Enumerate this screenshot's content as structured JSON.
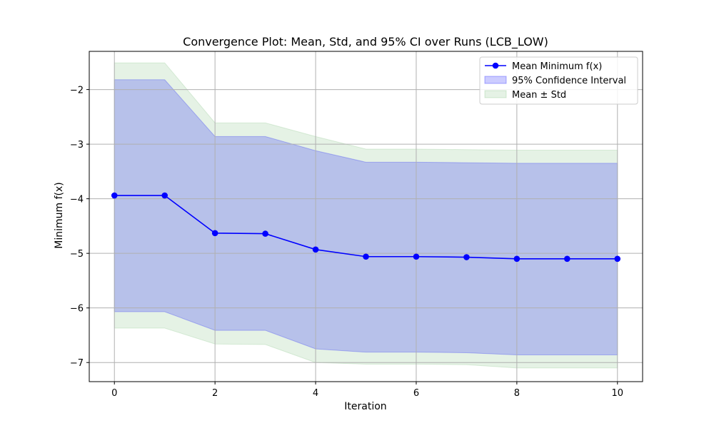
{
  "chart_data": {
    "type": "line",
    "title": "Convergence Plot: Mean, Std, and 95% CI over Runs (LCB_LOW)",
    "xlabel": "Iteration",
    "ylabel": "Minimum f(x)",
    "xlim": [
      -0.5,
      10.5
    ],
    "ylim": [
      -7.35,
      -1.3
    ],
    "x_ticks": [
      0,
      2,
      4,
      6,
      8,
      10
    ],
    "x_tick_labels": [
      "0",
      "2",
      "4",
      "6",
      "8",
      "10"
    ],
    "y_ticks": [
      -7,
      -6,
      -5,
      -4,
      -3,
      -2
    ],
    "y_tick_labels": [
      "−7",
      "−6",
      "−5",
      "−4",
      "−3",
      "−2"
    ],
    "grid": true,
    "legend_position": "top-right",
    "x": [
      0,
      1,
      2,
      3,
      4,
      5,
      6,
      7,
      8,
      9,
      10
    ],
    "series": [
      {
        "name": "Mean Minimum f(x)",
        "kind": "line",
        "color": "#0000ff",
        "marker": "circle",
        "values": [
          -3.94,
          -3.94,
          -4.63,
          -4.64,
          -4.93,
          -5.06,
          -5.06,
          -5.07,
          -5.1,
          -5.1,
          -5.1
        ]
      },
      {
        "name": "95% Confidence Interval",
        "kind": "band",
        "color": "#0000ff",
        "opacity": 0.2,
        "upper": [
          -1.82,
          -1.82,
          -2.86,
          -2.86,
          -3.12,
          -3.33,
          -3.33,
          -3.34,
          -3.35,
          -3.35,
          -3.35
        ],
        "lower": [
          -6.07,
          -6.07,
          -6.41,
          -6.41,
          -6.75,
          -6.81,
          -6.81,
          -6.82,
          -6.86,
          -6.86,
          -6.86
        ]
      },
      {
        "name": "Mean ± Std",
        "kind": "band",
        "color": "#008000",
        "opacity": 0.1,
        "upper": [
          -1.51,
          -1.51,
          -2.61,
          -2.61,
          -2.86,
          -3.09,
          -3.09,
          -3.1,
          -3.11,
          -3.11,
          -3.11
        ],
        "lower": [
          -6.37,
          -6.37,
          -6.66,
          -6.67,
          -7.0,
          -7.03,
          -7.03,
          -7.04,
          -7.1,
          -7.1,
          -7.1
        ]
      }
    ]
  }
}
